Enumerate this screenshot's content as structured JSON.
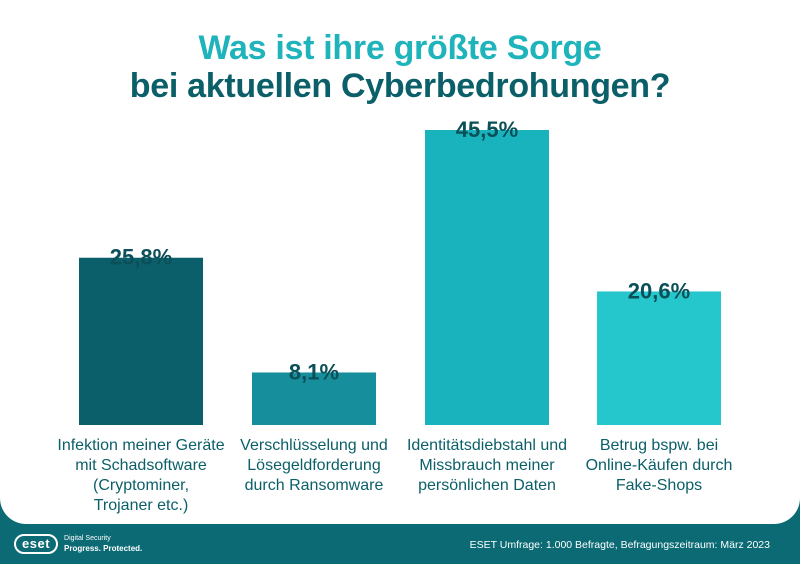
{
  "title_line1": "Was ist ihre größte Sorge",
  "title_line2": "bei aktuellen Cyberbedrohungen?",
  "chart_data": {
    "type": "bar",
    "title": "Was ist ihre größte Sorge bei aktuellen Cyberbedrohungen?",
    "categories": [
      "Infektion meiner Geräte mit Schadsoftware (Cryptominer, Trojaner etc.)",
      "Verschlüsselung und Lösegeldforderung durch Ransomware",
      "Identitätsdiebstahl und Missbrauch meiner persönlichen Daten",
      "Betrug bspw. bei Online-Käufen durch Fake-Shops"
    ],
    "values": [
      25.8,
      8.1,
      45.5,
      20.6
    ],
    "value_labels": [
      "25,8%",
      "8,1%",
      "45,5%",
      "20,6%"
    ],
    "category_label_lines": [
      [
        "Infektion meiner Geräte",
        "mit Schadsoftware",
        "(Cryptominer,",
        "Trojaner etc.)"
      ],
      [
        "Verschlüsselung und",
        "Lösegeldforderung",
        "durch Ransomware"
      ],
      [
        "Identitätsdiebstahl und",
        "Missbrauch meiner",
        "persönlichen Daten"
      ],
      [
        "Betrug bspw. bei",
        "Online-Käufen durch",
        "Fake-Shops"
      ]
    ],
    "colors": [
      "#0b5f6b",
      "#168e9b",
      "#19b3bd",
      "#25c6cc"
    ],
    "ylim": [
      0,
      45.5
    ],
    "xlabel": "",
    "ylabel": "",
    "grid": false
  },
  "footer": {
    "brand": "eset",
    "tagline_line1": "Digital Security",
    "tagline_line2": "Progress. Protected.",
    "source": "ESET Umfrage: 1.000 Befragte, Befragungszeitraum: März 2023"
  }
}
